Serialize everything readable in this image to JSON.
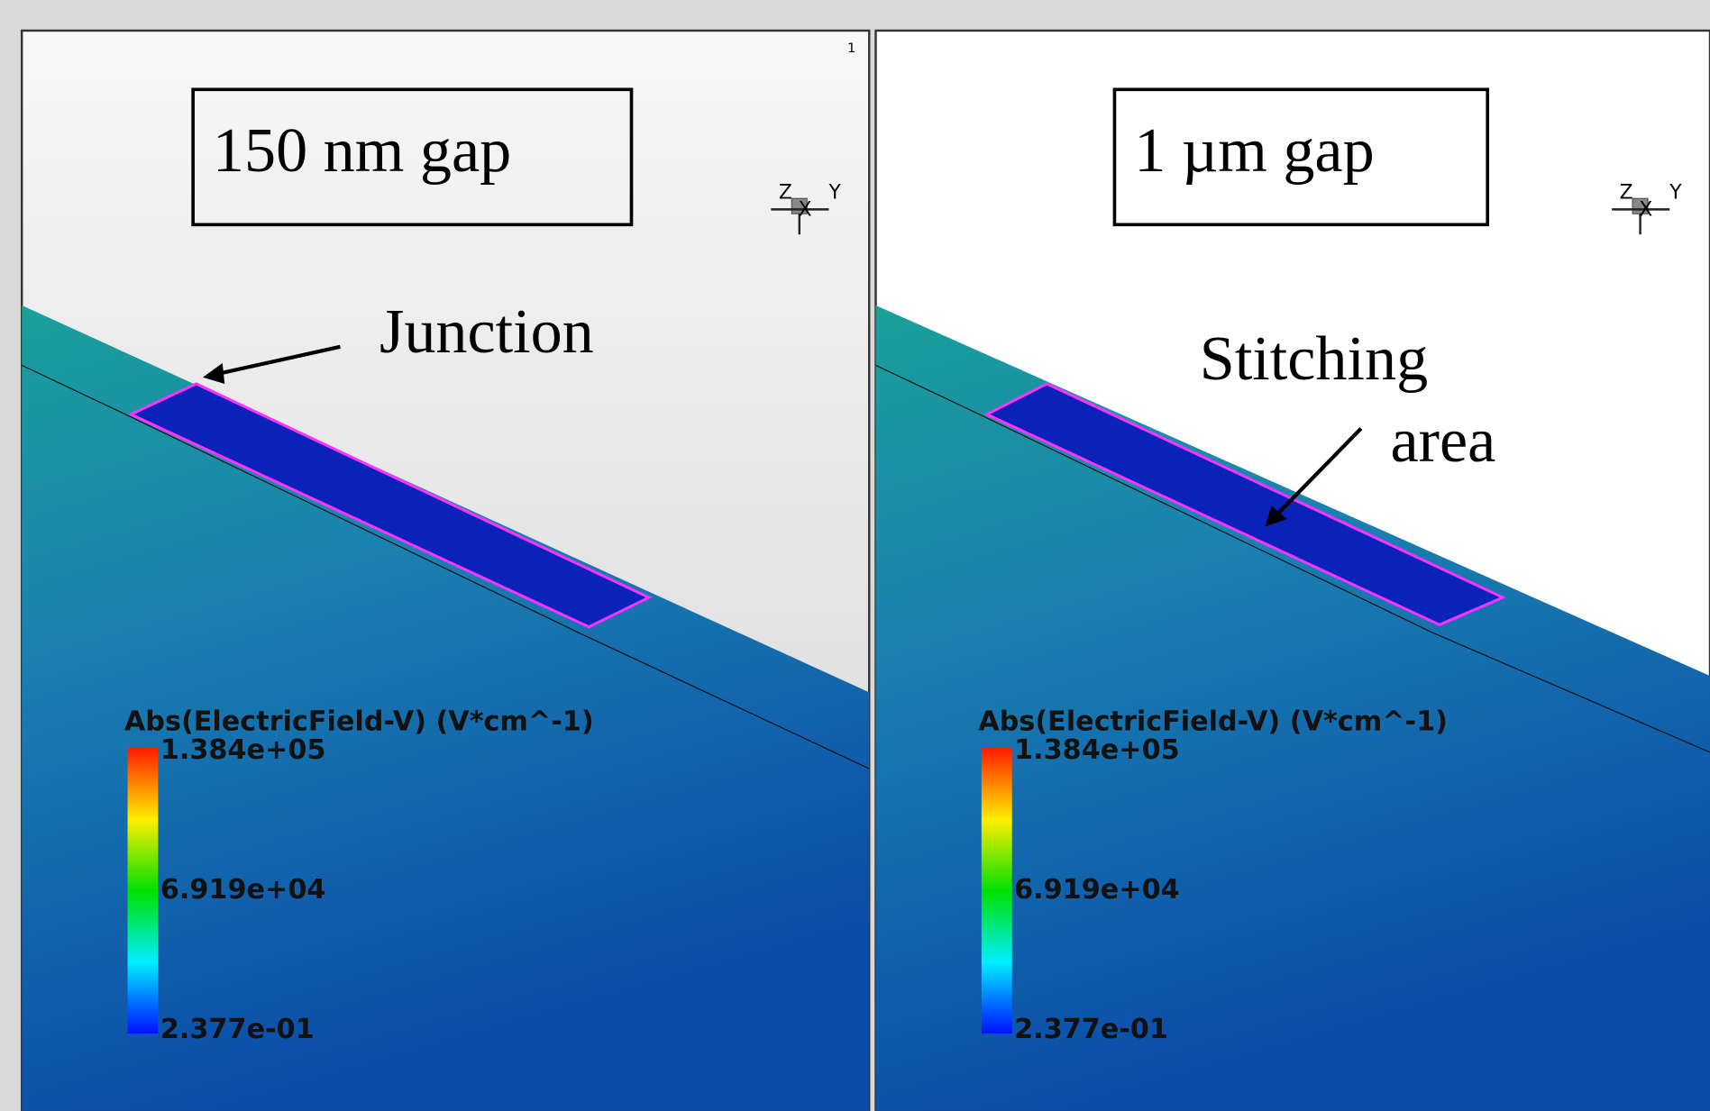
{
  "panels": [
    {
      "label": "150 nm gap",
      "viewport_id": "1",
      "annotation": [
        "Junction"
      ],
      "axes": [
        "Z",
        "X",
        "Y"
      ],
      "colorbar": {
        "title": "Abs(ElectricField-V) (V*cm^-1)",
        "labels": [
          "1.384e+05",
          "6.919e+04",
          "2.377e-01"
        ]
      }
    },
    {
      "label": "1 µm gap",
      "annotation": [
        "Stitching",
        "area"
      ],
      "axes": [
        "Z",
        "X",
        "Y"
      ],
      "colorbar": {
        "title": "Abs(ElectricField-V) (V*cm^-1)",
        "labels": [
          "1.384e+05",
          "6.919e+04",
          "2.377e-01"
        ]
      }
    }
  ]
}
